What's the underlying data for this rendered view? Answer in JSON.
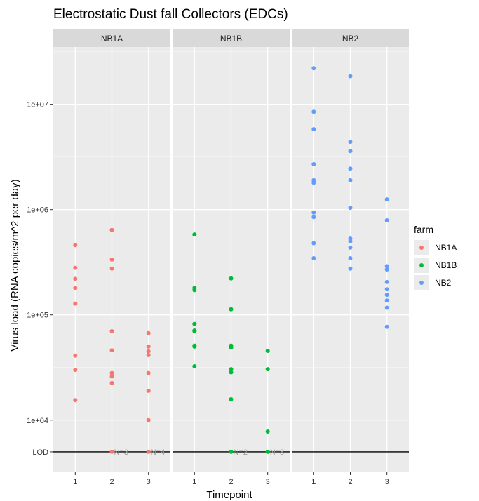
{
  "chart_data": {
    "type": "scatter",
    "title": "Electrostatic Dust fall Collectors (EDCs)",
    "xlabel": "Timepoint",
    "ylabel": "Virus load (RNA copies/m^2 per day)",
    "x_ticks": [
      "1",
      "2",
      "3"
    ],
    "y_scale": "log10",
    "y_ticks": [
      {
        "value": 10000,
        "label": "1e+04"
      },
      {
        "value": 100000,
        "label": "1e+05"
      },
      {
        "value": 1000000,
        "label": "1e+06"
      },
      {
        "value": 10000000,
        "label": "1e+07"
      }
    ],
    "lod": {
      "value": 5000,
      "label": "LOD"
    },
    "ylim": [
      3200,
      35000000
    ],
    "grid": true,
    "legend": {
      "title": "farm",
      "position": "right",
      "entries": [
        {
          "label": "NB1A",
          "color": "#F8766D"
        },
        {
          "label": "NB1B",
          "color": "#00BA38"
        },
        {
          "label": "NB2",
          "color": "#619CFF"
        }
      ]
    },
    "panels": [
      {
        "label": "NB1A",
        "color": "#F8766D",
        "points": [
          {
            "x": 1,
            "y": 460000
          },
          {
            "x": 1,
            "y": 280000
          },
          {
            "x": 1,
            "y": 220000
          },
          {
            "x": 1,
            "y": 180000
          },
          {
            "x": 1,
            "y": 128000
          },
          {
            "x": 1,
            "y": 41000
          },
          {
            "x": 1,
            "y": 30000
          },
          {
            "x": 1,
            "y": 15500
          },
          {
            "x": 2,
            "y": 640000
          },
          {
            "x": 2,
            "y": 335000
          },
          {
            "x": 2,
            "y": 275000
          },
          {
            "x": 2,
            "y": 70000
          },
          {
            "x": 2,
            "y": 46000
          },
          {
            "x": 2,
            "y": 28000
          },
          {
            "x": 2,
            "y": 26000
          },
          {
            "x": 2,
            "y": 22500
          },
          {
            "x": 2,
            "y": 5000
          },
          {
            "x": 3,
            "y": 67000
          },
          {
            "x": 3,
            "y": 50000
          },
          {
            "x": 3,
            "y": 45000
          },
          {
            "x": 3,
            "y": 41500
          },
          {
            "x": 3,
            "y": 28000
          },
          {
            "x": 3,
            "y": 19000
          },
          {
            "x": 3,
            "y": 10000
          },
          {
            "x": 3,
            "y": 5000
          }
        ],
        "annotations": [
          {
            "x": 2,
            "y": 5000,
            "text": "N=3"
          },
          {
            "x": 3,
            "y": 5000,
            "text": "N=4"
          }
        ]
      },
      {
        "label": "NB1B",
        "color": "#00BA38",
        "points": [
          {
            "x": 1,
            "y": 580000
          },
          {
            "x": 1,
            "y": 180000
          },
          {
            "x": 1,
            "y": 172000
          },
          {
            "x": 1,
            "y": 82000
          },
          {
            "x": 1,
            "y": 71000
          },
          {
            "x": 1,
            "y": 70000
          },
          {
            "x": 1,
            "y": 51000
          },
          {
            "x": 1,
            "y": 50000
          },
          {
            "x": 1,
            "y": 32500
          },
          {
            "x": 2,
            "y": 222000
          },
          {
            "x": 2,
            "y": 113000
          },
          {
            "x": 2,
            "y": 51000
          },
          {
            "x": 2,
            "y": 49000
          },
          {
            "x": 2,
            "y": 30500
          },
          {
            "x": 2,
            "y": 28500
          },
          {
            "x": 2,
            "y": 15800
          },
          {
            "x": 2,
            "y": 5000
          },
          {
            "x": 3,
            "y": 45500
          },
          {
            "x": 3,
            "y": 30500
          },
          {
            "x": 3,
            "y": 7800
          },
          {
            "x": 3,
            "y": 5000
          }
        ],
        "annotations": [
          {
            "x": 2,
            "y": 5000,
            "text": "N=2"
          },
          {
            "x": 3,
            "y": 5000,
            "text": "N=8"
          }
        ]
      },
      {
        "label": "NB2",
        "color": "#619CFF",
        "points": [
          {
            "x": 1,
            "y": 22000000
          },
          {
            "x": 1,
            "y": 8500000
          },
          {
            "x": 1,
            "y": 5800000
          },
          {
            "x": 1,
            "y": 2700000
          },
          {
            "x": 1,
            "y": 1900000
          },
          {
            "x": 1,
            "y": 1800000
          },
          {
            "x": 1,
            "y": 940000
          },
          {
            "x": 1,
            "y": 850000
          },
          {
            "x": 1,
            "y": 480000
          },
          {
            "x": 1,
            "y": 345000
          },
          {
            "x": 2,
            "y": 18500000
          },
          {
            "x": 2,
            "y": 4400000
          },
          {
            "x": 2,
            "y": 3600000
          },
          {
            "x": 2,
            "y": 2450000
          },
          {
            "x": 2,
            "y": 1900000
          },
          {
            "x": 2,
            "y": 1040000
          },
          {
            "x": 2,
            "y": 530000
          },
          {
            "x": 2,
            "y": 500000
          },
          {
            "x": 2,
            "y": 435000
          },
          {
            "x": 2,
            "y": 345000
          },
          {
            "x": 2,
            "y": 275000
          },
          {
            "x": 3,
            "y": 1250000
          },
          {
            "x": 3,
            "y": 790000
          },
          {
            "x": 3,
            "y": 290000
          },
          {
            "x": 3,
            "y": 270000
          },
          {
            "x": 3,
            "y": 205000
          },
          {
            "x": 3,
            "y": 175000
          },
          {
            "x": 3,
            "y": 155000
          },
          {
            "x": 3,
            "y": 137000
          },
          {
            "x": 3,
            "y": 117000
          },
          {
            "x": 3,
            "y": 77000
          }
        ],
        "annotations": []
      }
    ]
  }
}
